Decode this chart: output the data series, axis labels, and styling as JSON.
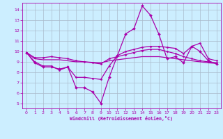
{
  "xlabel": "Windchill (Refroidissement éolien,°C)",
  "bg_color": "#cceeff",
  "grid_color": "#aabbcc",
  "line_color": "#aa00aa",
  "xlim": [
    -0.5,
    23.5
  ],
  "ylim": [
    4.5,
    14.7
  ],
  "xticks": [
    0,
    1,
    2,
    3,
    4,
    5,
    6,
    7,
    8,
    9,
    10,
    11,
    12,
    13,
    14,
    15,
    16,
    17,
    18,
    19,
    20,
    21,
    22,
    23
  ],
  "yticks": [
    5,
    6,
    7,
    8,
    9,
    10,
    11,
    12,
    13,
    14
  ],
  "line1_x": [
    0,
    1,
    2,
    3,
    4,
    5,
    6,
    7,
    8,
    9,
    10,
    11,
    12,
    13,
    14,
    15,
    16,
    17,
    18,
    19,
    20,
    21,
    22,
    23
  ],
  "line1_y": [
    9.9,
    8.9,
    8.5,
    8.5,
    8.3,
    8.5,
    6.5,
    6.5,
    6.1,
    5.0,
    7.5,
    9.6,
    11.7,
    12.2,
    14.4,
    13.5,
    11.7,
    9.3,
    9.5,
    8.9,
    10.5,
    10.0,
    9.1,
    8.8
  ],
  "line2_x": [
    0,
    1,
    2,
    3,
    4,
    5,
    6,
    7,
    8,
    9,
    10,
    11,
    12,
    13,
    14,
    15,
    16,
    17,
    18,
    19,
    20,
    21,
    22,
    23
  ],
  "line2_y": [
    9.9,
    9.4,
    9.4,
    9.5,
    9.4,
    9.3,
    9.1,
    9.0,
    8.9,
    8.8,
    9.3,
    9.5,
    9.7,
    9.9,
    10.1,
    10.2,
    10.2,
    10.0,
    9.8,
    9.5,
    9.3,
    9.1,
    9.0,
    8.9
  ],
  "line3_x": [
    0,
    1,
    2,
    3,
    4,
    5,
    6,
    7,
    8,
    9,
    10,
    11,
    12,
    13,
    14,
    15,
    16,
    17,
    18,
    19,
    20,
    21,
    22,
    23
  ],
  "line3_y": [
    9.9,
    9.3,
    9.2,
    9.2,
    9.2,
    9.1,
    9.0,
    9.0,
    8.95,
    8.9,
    9.1,
    9.2,
    9.3,
    9.4,
    9.5,
    9.5,
    9.5,
    9.4,
    9.3,
    9.2,
    9.1,
    9.0,
    8.9,
    8.85
  ],
  "line4_x": [
    0,
    1,
    2,
    3,
    4,
    5,
    6,
    7,
    8,
    9,
    10,
    11,
    12,
    13,
    14,
    15,
    16,
    17,
    18,
    19,
    20,
    21,
    22,
    23
  ],
  "line4_y": [
    9.9,
    9.0,
    8.6,
    8.6,
    8.2,
    8.5,
    7.5,
    7.5,
    7.4,
    7.3,
    8.6,
    9.6,
    10.0,
    10.2,
    10.4,
    10.5,
    10.5,
    10.4,
    10.3,
    9.8,
    10.5,
    10.8,
    9.3,
    9.1
  ]
}
